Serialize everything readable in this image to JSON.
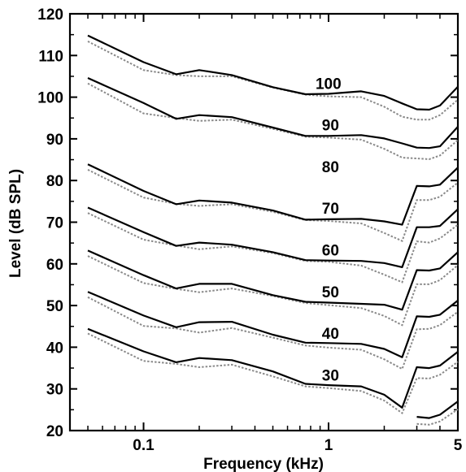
{
  "chart_data": {
    "type": "line",
    "title": "",
    "xlabel": "Frequency (kHz)",
    "ylabel": "Level (dB SPL)",
    "x_scale": "log",
    "xlim": [
      0.04,
      5
    ],
    "ylim": [
      20,
      120
    ],
    "x_ticks": [
      {
        "value": 0.1,
        "label": "0.1"
      },
      {
        "value": 1,
        "label": "1"
      },
      {
        "value": 5,
        "label": "5"
      }
    ],
    "y_ticks": [
      20,
      30,
      40,
      50,
      60,
      70,
      80,
      90,
      100,
      110,
      120
    ],
    "grid": false,
    "x": [
      0.05,
      0.1,
      0.15,
      0.2,
      0.3,
      0.5,
      0.75,
      1,
      1.5,
      2,
      2.5,
      3,
      3.5,
      4,
      5
    ],
    "series": [
      {
        "label": "100",
        "label_x": 0.85,
        "label_y": 102,
        "solid": [
          114.8,
          108.4,
          105.5,
          106.5,
          105.3,
          102.4,
          100.7,
          100.8,
          101.4,
          100.3,
          98.5,
          97.1,
          97.0,
          98.0,
          102.5
        ],
        "dotted": [
          113.4,
          106.5,
          105.3,
          105.0,
          105.0,
          102.3,
          100.6,
          100.2,
          100.0,
          97.7,
          95.3,
          94.6,
          94.6,
          95.7,
          99.4
        ]
      },
      {
        "label": "90",
        "label_x": 0.92,
        "label_y": 92,
        "solid": [
          104.6,
          98.6,
          94.8,
          95.7,
          95.2,
          92.7,
          90.7,
          90.7,
          90.9,
          90.1,
          88.9,
          87.9,
          87.8,
          88.2,
          92.9
        ],
        "dotted": [
          103.3,
          96.1,
          95.0,
          94.3,
          94.6,
          92.4,
          90.5,
          90.3,
          89.8,
          87.6,
          85.5,
          85.3,
          85.1,
          86.0,
          89.7
        ]
      },
      {
        "label": "80",
        "label_x": 0.92,
        "label_y": 82,
        "solid": [
          83.9,
          77.5,
          74.3,
          75.2,
          74.7,
          72.8,
          70.6,
          70.7,
          70.8,
          70.2,
          69.4,
          78.7,
          78.6,
          79.0,
          83.1
        ],
        "dotted": [
          82.6,
          75.9,
          74.4,
          73.9,
          74.3,
          72.5,
          70.5,
          70.3,
          69.7,
          67.4,
          65.5,
          75.3,
          75.3,
          76.1,
          79.5
        ]
      },
      {
        "label": "70",
        "label_x": 0.92,
        "label_y": 72,
        "solid": [
          73.5,
          67.6,
          64.3,
          65.1,
          64.6,
          62.8,
          60.9,
          60.8,
          60.7,
          60.2,
          59.2,
          68.8,
          68.8,
          69.1,
          73.1
        ],
        "dotted": [
          72.2,
          65.8,
          64.4,
          63.5,
          64.2,
          62.6,
          60.7,
          60.5,
          59.6,
          57.4,
          55.6,
          65.4,
          65.1,
          66.1,
          69.4
        ]
      },
      {
        "label": "60",
        "label_x": 0.92,
        "label_y": 62,
        "solid": [
          63.2,
          57.3,
          54.1,
          55.2,
          55.2,
          52.5,
          50.9,
          50.7,
          50.4,
          50.2,
          49.0,
          58.5,
          58.4,
          58.9,
          62.8
        ],
        "dotted": [
          61.9,
          55.4,
          54.0,
          53.2,
          54.1,
          52.3,
          50.6,
          50.1,
          49.4,
          47.5,
          45.3,
          55.1,
          55.1,
          56.1,
          59.7
        ]
      },
      {
        "label": "50",
        "label_x": 0.92,
        "label_y": 52,
        "solid": [
          53.3,
          47.6,
          44.8,
          46.0,
          46.1,
          43.0,
          41.1,
          41.0,
          40.8,
          39.6,
          37.6,
          47.4,
          47.3,
          47.8,
          51.2
        ],
        "dotted": [
          52.0,
          45.1,
          44.5,
          43.5,
          44.6,
          42.3,
          40.4,
          39.9,
          39.4,
          37.1,
          34.8,
          44.3,
          44.4,
          45.3,
          48.5
        ]
      },
      {
        "label": "40",
        "label_x": 0.92,
        "label_y": 42,
        "solid": [
          44.4,
          39.0,
          36.4,
          37.4,
          36.9,
          34.2,
          31.2,
          30.9,
          30.6,
          28.6,
          25.5,
          35.2,
          35.0,
          35.6,
          38.9
        ],
        "dotted": [
          43.3,
          36.7,
          36.0,
          35.2,
          35.8,
          33.0,
          30.6,
          30.2,
          29.5,
          27.2,
          24.2,
          32.6,
          32.5,
          33.4,
          36.5
        ]
      },
      {
        "label": "30",
        "label_x": 0.92,
        "label_y": 32,
        "solid": [
          null,
          null,
          null,
          null,
          null,
          null,
          null,
          null,
          null,
          null,
          null,
          23.3,
          23.0,
          23.8,
          27.0
        ],
        "dotted": [
          null,
          null,
          null,
          null,
          null,
          null,
          null,
          null,
          null,
          null,
          null,
          21.6,
          21.4,
          22.2,
          25.1
        ]
      }
    ]
  }
}
